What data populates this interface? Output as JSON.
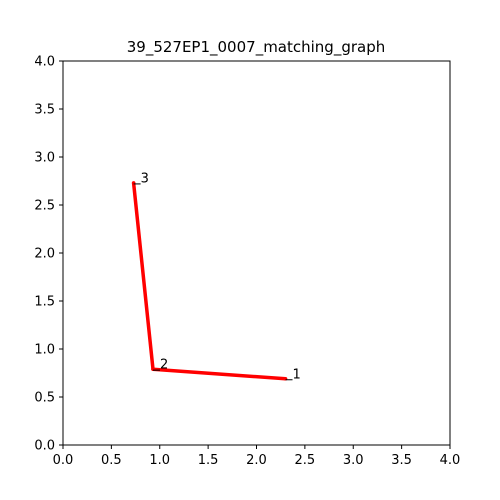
{
  "chart_data": {
    "type": "line",
    "title": "39_527EP1_0007_matching_graph",
    "xlabel": "",
    "ylabel": "",
    "xlim": [
      0,
      4
    ],
    "ylim": [
      0,
      4
    ],
    "x_ticks": [
      "0.0",
      "0.5",
      "1.0",
      "1.5",
      "2.0",
      "2.5",
      "3.0",
      "3.5",
      "4.0"
    ],
    "y_ticks": [
      "0.0",
      "0.5",
      "1.0",
      "1.5",
      "2.0",
      "2.5",
      "3.0",
      "3.5",
      "4.0"
    ],
    "grid": false,
    "series": [
      {
        "color": "#ff0000",
        "points": [
          {
            "x": 2.3,
            "y": 0.69
          },
          {
            "x": 0.93,
            "y": 0.79
          },
          {
            "x": 0.73,
            "y": 2.73
          }
        ]
      }
    ],
    "point_labels": [
      {
        "text": "1",
        "x": 2.3,
        "y": 0.69
      },
      {
        "text": "2",
        "x": 0.93,
        "y": 0.79
      },
      {
        "text": "3",
        "x": 0.73,
        "y": 2.73
      }
    ]
  }
}
